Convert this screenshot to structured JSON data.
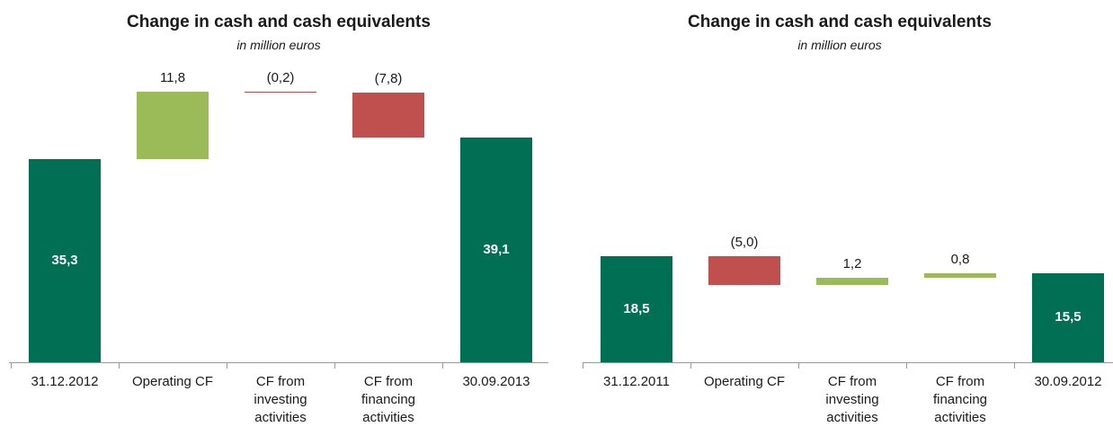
{
  "chart_data": [
    {
      "type": "waterfall",
      "title": "Change in cash and cash equivalents",
      "subtitle": "in million euros",
      "categories": [
        "31.12.2012",
        "Operating CF",
        "CF from investing activities",
        "CF from financing activities",
        "30.09.2013"
      ],
      "values": [
        35.3,
        11.8,
        -0.2,
        -7.8,
        39.1
      ],
      "value_labels": [
        "35,3",
        "11,8",
        "(0,2)",
        "(7,8)",
        "39,1"
      ],
      "colors": {
        "total": "#006f54",
        "increase": "#9bbb59",
        "decrease": "#c0504d"
      }
    },
    {
      "type": "waterfall",
      "title": "Change in cash and cash equivalents",
      "subtitle": "in million euros",
      "categories": [
        "31.12.2011",
        "Operating CF",
        "CF from investing activities",
        "CF from financing activities",
        "30.09.2012"
      ],
      "values": [
        18.5,
        -5.0,
        1.2,
        0.8,
        15.5
      ],
      "value_labels": [
        "18,5",
        "(5,0)",
        "1,2",
        "0,8",
        "15,5"
      ],
      "colors": {
        "total": "#006f54",
        "increase": "#9bbb59",
        "decrease": "#c0504d"
      }
    }
  ]
}
